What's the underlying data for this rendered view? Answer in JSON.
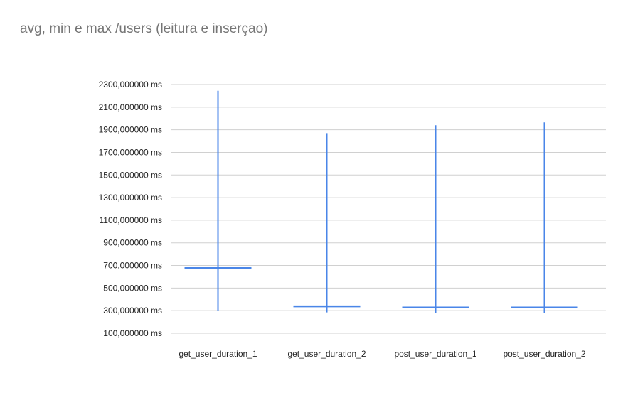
{
  "title": "avg, min e max /users (leitura e inserçao)",
  "colors": {
    "series": "#4a86e8",
    "grid": "#d0d0d0",
    "title": "#757575",
    "text": "#222222"
  },
  "chart_data": {
    "type": "candlestick",
    "title": "avg, min e max /users (leitura e inserçao)",
    "xlabel": "",
    "ylabel": "",
    "ylim": [
      100,
      2300
    ],
    "yticks": [
      100,
      300,
      500,
      700,
      900,
      1100,
      1300,
      1500,
      1700,
      1900,
      2100,
      2300
    ],
    "ytick_labels": [
      "100,000000  ms",
      "300,000000  ms",
      "500,000000  ms",
      "700,000000  ms",
      "900,000000  ms",
      "1100,000000  ms",
      "1300,000000  ms",
      "1500,000000  ms",
      "1700,000000  ms",
      "1900,000000  ms",
      "2100,000000  ms",
      "2300,000000  ms"
    ],
    "grid": true,
    "categories": [
      "get_user_duration_1",
      "get_user_duration_2",
      "post_user_duration_1",
      "post_user_duration_2"
    ],
    "min": [
      295,
      285,
      280,
      278
    ],
    "max": [
      2245,
      1870,
      1940,
      1965
    ],
    "avg": [
      680,
      338,
      328,
      328
    ]
  }
}
